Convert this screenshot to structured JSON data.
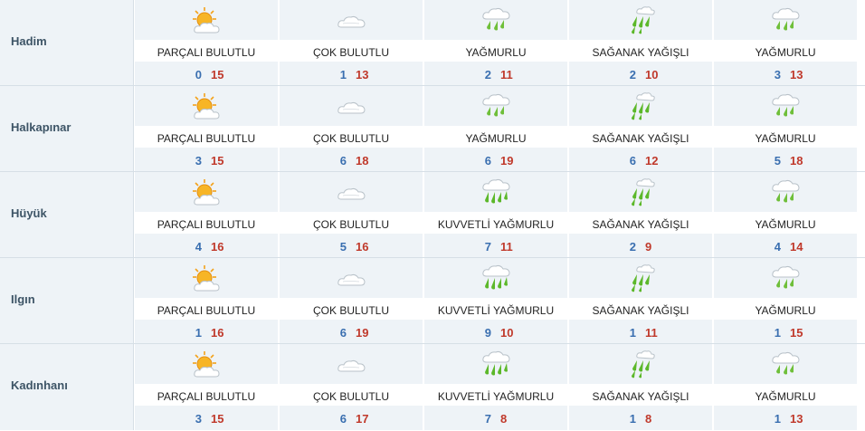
{
  "rows": [
    {
      "city": "Hadim",
      "days": [
        {
          "icon": "partly-cloudy-icon",
          "desc": "PARÇALI BULUTLU",
          "min": "0",
          "max": "15"
        },
        {
          "icon": "cloudy-icon",
          "desc": "ÇOK BULUTLU",
          "min": "1",
          "max": "13"
        },
        {
          "icon": "rain-icon",
          "desc": "YAĞMURLU",
          "min": "2",
          "max": "11"
        },
        {
          "icon": "showers-icon",
          "desc": "SAĞANAK YAĞIŞLI",
          "min": "2",
          "max": "10"
        },
        {
          "icon": "rain-icon",
          "desc": "YAĞMURLU",
          "min": "3",
          "max": "13"
        }
      ]
    },
    {
      "city": "Halkapınar",
      "days": [
        {
          "icon": "partly-cloudy-icon",
          "desc": "PARÇALI BULUTLU",
          "min": "3",
          "max": "15"
        },
        {
          "icon": "cloudy-icon",
          "desc": "ÇOK BULUTLU",
          "min": "6",
          "max": "18"
        },
        {
          "icon": "rain-icon",
          "desc": "YAĞMURLU",
          "min": "6",
          "max": "19"
        },
        {
          "icon": "showers-icon",
          "desc": "SAĞANAK YAĞIŞLI",
          "min": "6",
          "max": "12"
        },
        {
          "icon": "rain-icon",
          "desc": "YAĞMURLU",
          "min": "5",
          "max": "18"
        }
      ]
    },
    {
      "city": "Hüyük",
      "days": [
        {
          "icon": "partly-cloudy-icon",
          "desc": "PARÇALI BULUTLU",
          "min": "4",
          "max": "16"
        },
        {
          "icon": "cloudy-icon",
          "desc": "ÇOK BULUTLU",
          "min": "5",
          "max": "16"
        },
        {
          "icon": "heavy-rain-icon",
          "desc": "KUVVETLİ YAĞMURLU",
          "min": "7",
          "max": "11"
        },
        {
          "icon": "showers-icon",
          "desc": "SAĞANAK YAĞIŞLI",
          "min": "2",
          "max": "9"
        },
        {
          "icon": "rain-icon",
          "desc": "YAĞMURLU",
          "min": "4",
          "max": "14"
        }
      ]
    },
    {
      "city": "Ilgın",
      "days": [
        {
          "icon": "partly-cloudy-icon",
          "desc": "PARÇALI BULUTLU",
          "min": "1",
          "max": "16"
        },
        {
          "icon": "cloudy-icon",
          "desc": "ÇOK BULUTLU",
          "min": "6",
          "max": "19"
        },
        {
          "icon": "heavy-rain-icon",
          "desc": "KUVVETLİ YAĞMURLU",
          "min": "9",
          "max": "10"
        },
        {
          "icon": "showers-icon",
          "desc": "SAĞANAK YAĞIŞLI",
          "min": "1",
          "max": "11"
        },
        {
          "icon": "rain-icon",
          "desc": "YAĞMURLU",
          "min": "1",
          "max": "15"
        }
      ]
    },
    {
      "city": "Kadınhanı",
      "days": [
        {
          "icon": "partly-cloudy-icon",
          "desc": "PARÇALI BULUTLU",
          "min": "3",
          "max": "15"
        },
        {
          "icon": "cloudy-icon",
          "desc": "ÇOK BULUTLU",
          "min": "6",
          "max": "17"
        },
        {
          "icon": "heavy-rain-icon",
          "desc": "KUVVETLİ YAĞMURLU",
          "min": "7",
          "max": "8"
        },
        {
          "icon": "showers-icon",
          "desc": "SAĞANAK YAĞIŞLI",
          "min": "1",
          "max": "8"
        },
        {
          "icon": "rain-icon",
          "desc": "YAĞMURLU",
          "min": "1",
          "max": "13"
        }
      ]
    }
  ],
  "colors": {
    "min_temp": "#3a6fb0",
    "max_temp": "#c0392b",
    "city_text": "#3d5466",
    "band": "#eef3f7"
  }
}
